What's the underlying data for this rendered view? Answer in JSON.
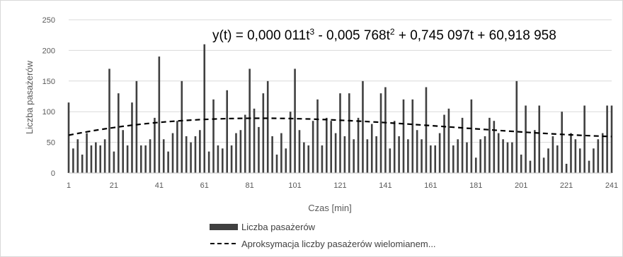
{
  "chart_data": {
    "type": "bar",
    "title": "",
    "xlabel": "Czas [min]",
    "ylabel": "Liczba pasażerów",
    "ylim": [
      0,
      250
    ],
    "yticks": [
      "0",
      "50",
      "100",
      "150",
      "200",
      "250"
    ],
    "xlim": [
      1,
      241
    ],
    "xticks": [
      "1",
      "21",
      "41",
      "61",
      "81",
      "101",
      "121",
      "141",
      "161",
      "181",
      "201",
      "221",
      "241"
    ],
    "grid": "horizontal",
    "legend_position": "bottom",
    "equation": {
      "prefix": "y(t) = 0,000 011t",
      "exp1": "3",
      "mid1": " - 0,005 768t",
      "exp2": "2",
      "rest": " + 0,745 097t + 60,918 958"
    },
    "series": [
      {
        "name": "Liczba pasażerów",
        "kind": "bar",
        "color": "#404040",
        "x": [
          1,
          3,
          5,
          7,
          9,
          11,
          13,
          15,
          17,
          19,
          21,
          23,
          25,
          27,
          29,
          31,
          33,
          35,
          37,
          39,
          41,
          43,
          45,
          47,
          49,
          51,
          53,
          55,
          57,
          59,
          61,
          63,
          65,
          67,
          69,
          71,
          73,
          75,
          77,
          79,
          81,
          83,
          85,
          87,
          89,
          91,
          93,
          95,
          97,
          99,
          101,
          103,
          105,
          107,
          109,
          111,
          113,
          115,
          117,
          119,
          121,
          123,
          125,
          127,
          129,
          131,
          133,
          135,
          137,
          139,
          141,
          143,
          145,
          147,
          149,
          151,
          153,
          155,
          157,
          159,
          161,
          163,
          165,
          167,
          169,
          171,
          173,
          175,
          177,
          179,
          181,
          183,
          185,
          187,
          189,
          191,
          193,
          195,
          197,
          199,
          201,
          203,
          205,
          207,
          209,
          211,
          213,
          215,
          217,
          219,
          221,
          223,
          225,
          227,
          229,
          231,
          233,
          235,
          237,
          239,
          241
        ],
        "values": [
          115,
          40,
          55,
          30,
          65,
          45,
          50,
          45,
          55,
          170,
          35,
          130,
          70,
          45,
          115,
          150,
          45,
          45,
          55,
          90,
          190,
          55,
          35,
          65,
          85,
          150,
          60,
          50,
          60,
          70,
          210,
          35,
          120,
          45,
          40,
          135,
          45,
          65,
          70,
          95,
          170,
          105,
          75,
          130,
          150,
          60,
          30,
          65,
          40,
          100,
          170,
          70,
          50,
          45,
          85,
          120,
          45,
          90,
          85,
          65,
          130,
          60,
          130,
          55,
          90,
          150,
          55,
          80,
          60,
          130,
          140,
          40,
          85,
          60,
          120,
          55,
          120,
          70,
          55,
          140,
          45,
          45,
          65,
          95,
          105,
          45,
          55,
          90,
          50,
          120,
          25,
          55,
          60,
          90,
          85,
          65,
          55,
          50,
          50,
          150,
          30,
          110,
          20,
          70,
          110,
          25,
          40,
          60,
          45,
          100,
          15,
          65,
          55,
          40,
          110,
          20,
          40,
          55,
          65,
          110,
          110
        ]
      },
      {
        "name": "Aproksymacja liczby pasażerów wielomianem...",
        "kind": "line",
        "style": "dashed",
        "color": "#000000",
        "coefficients": [
          1.1e-05,
          -0.005768,
          0.745097,
          60.918958
        ]
      }
    ]
  }
}
